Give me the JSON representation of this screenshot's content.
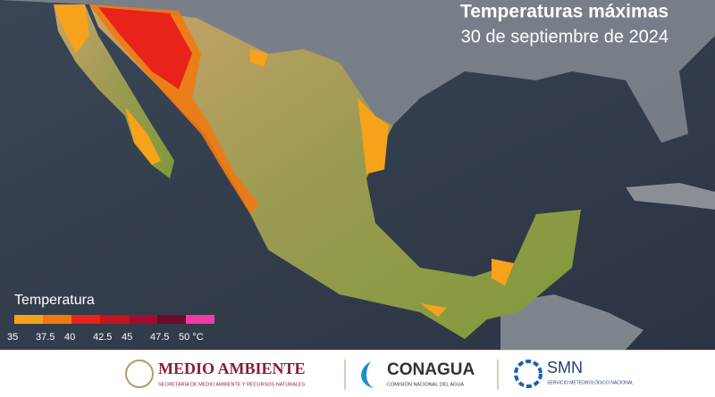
{
  "header": {
    "title": "Temperaturas máximas",
    "subtitle": "30 de septiembre de 2024"
  },
  "legend": {
    "title": "Temperatura",
    "colors": [
      "#f7a21b",
      "#f07a12",
      "#e8231a",
      "#c8141c",
      "#a0102e",
      "#6e0a2a",
      "#f03ca0"
    ],
    "labels": [
      "35",
      "37.5",
      "40",
      "42.5",
      "45",
      "47.5",
      "50 °C"
    ]
  },
  "footer": {
    "semarnat": {
      "name": "MEDIO AMBIENTE",
      "subtitle": "SECRETARÍA DE MEDIO AMBIENTE Y RECURSOS NATURALES"
    },
    "conagua": {
      "name": "CONAGUA",
      "subtitle": "COMISIÓN NACIONAL DEL AGUA"
    },
    "smn": {
      "name": "SMN",
      "subtitle": "SERVICIO METEOROLÓGICO NACIONAL"
    }
  }
}
